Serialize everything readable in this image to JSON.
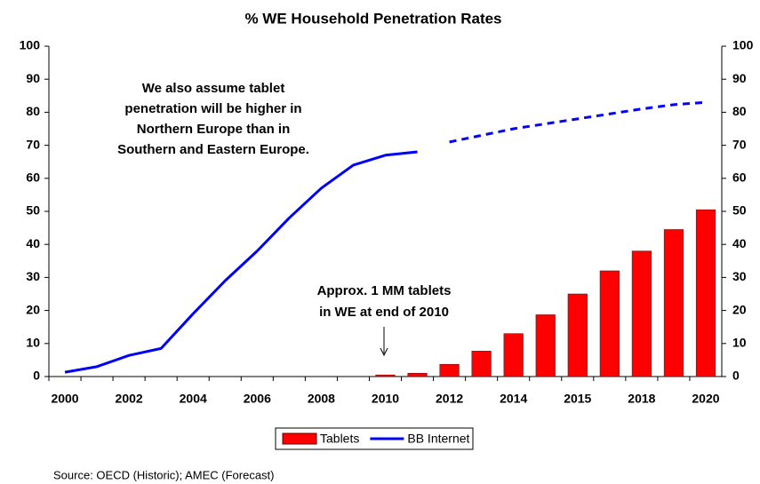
{
  "chart_data": {
    "type": "bar",
    "title": "% WE Household Penetration Rates",
    "categories": [
      "2000",
      null,
      "2002",
      null,
      "2004",
      null,
      "2006",
      null,
      "2008",
      null,
      "2010",
      null,
      "2012",
      null,
      "2014",
      null,
      "2015",
      null,
      "2018",
      null,
      "2020"
    ],
    "series": [
      {
        "name": "Tablets",
        "type": "bar",
        "color": "#ff0000",
        "values": [
          null,
          null,
          null,
          null,
          null,
          null,
          null,
          null,
          null,
          null,
          0.5,
          1,
          3.7,
          7.7,
          13,
          18.7,
          25,
          32,
          38,
          44.5,
          50.5
        ]
      },
      {
        "name": "BB Internet",
        "type": "line",
        "color": "#0000ff",
        "values": [
          1.3,
          3,
          6.4,
          8.5,
          19,
          29,
          38,
          48,
          57,
          64,
          67,
          68,
          null,
          null,
          null,
          null,
          null,
          null,
          null,
          null,
          null
        ]
      },
      {
        "type": "line",
        "color": "#0000ff",
        "dashed": true,
        "values": [
          null,
          null,
          null,
          null,
          null,
          null,
          null,
          null,
          null,
          null,
          null,
          null,
          71,
          73,
          75,
          76.5,
          78,
          79.5,
          81,
          82.3,
          83
        ]
      }
    ],
    "ylim": [
      0,
      100
    ],
    "yticks": [
      0,
      10,
      20,
      30,
      40,
      50,
      60,
      70,
      80,
      90,
      100
    ],
    "y2lim": [
      0,
      100
    ],
    "y2ticks": [
      0,
      10,
      20,
      30,
      40,
      50,
      60,
      70,
      80,
      90,
      100
    ],
    "legend": "bottom",
    "annotations": [
      {
        "lines": [
          "We also assume tablet",
          "penetration will be higher in",
          "Northern Europe than in",
          "Southern and Eastern Europe."
        ]
      },
      {
        "lines": [
          "Approx. 1 MM tablets",
          "in WE at end of 2010"
        ]
      }
    ],
    "source": "Source: OECD (Historic); AMEC (Forecast)"
  }
}
